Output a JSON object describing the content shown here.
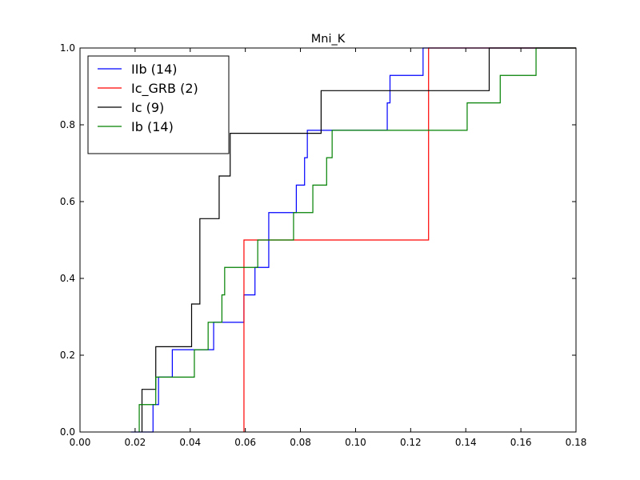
{
  "chart_data": {
    "type": "line",
    "title": "Mni_K",
    "xlabel": "",
    "ylabel": "",
    "xlim": [
      0.0,
      0.18
    ],
    "ylim": [
      0.0,
      1.0
    ],
    "xticks": [
      "0.00",
      "0.02",
      "0.04",
      "0.06",
      "0.08",
      "0.10",
      "0.12",
      "0.14",
      "0.16",
      "0.18"
    ],
    "yticks": [
      "0.0",
      "0.2",
      "0.4",
      "0.6",
      "0.8",
      "1.0"
    ],
    "grid": false,
    "legend_position": "top-left",
    "series": [
      {
        "name": "IIb (14)",
        "color": "#0000ff",
        "x": [
          0.0185,
          0.0265,
          0.0285,
          0.0335,
          0.0485,
          0.0595,
          0.0635,
          0.0685,
          0.0785,
          0.0815,
          0.0825,
          0.0835,
          0.1115,
          0.1125,
          0.1245
        ],
        "y": [
          0.0,
          0.0714,
          0.1429,
          0.2143,
          0.2857,
          0.3571,
          0.4286,
          0.5714,
          0.6429,
          0.7143,
          0.7857,
          0.7857,
          0.8571,
          0.9286,
          1.0
        ]
      },
      {
        "name": "Ic_GRB (2)",
        "color": "#ff0000",
        "x": [
          0.0595,
          0.1265
        ],
        "y": [
          0.5,
          1.0
        ]
      },
      {
        "name": "Ic (9)",
        "color": "#000000",
        "x": [
          0.0225,
          0.0275,
          0.0405,
          0.0435,
          0.0505,
          0.0545,
          0.0875,
          0.1485
        ],
        "y": [
          0.1111,
          0.2222,
          0.3333,
          0.5556,
          0.6667,
          0.7778,
          0.8889,
          1.0
        ]
      },
      {
        "name": "Ib (14)",
        "color": "#008000",
        "x": [
          0.0215,
          0.0275,
          0.0415,
          0.0465,
          0.0515,
          0.0525,
          0.0645,
          0.0775,
          0.0845,
          0.0895,
          0.0915,
          0.1405,
          0.1525,
          0.1655
        ],
        "y": [
          0.0714,
          0.1429,
          0.2143,
          0.2857,
          0.3571,
          0.4286,
          0.5,
          0.5714,
          0.6429,
          0.7143,
          0.7857,
          0.8571,
          0.9286,
          1.0
        ]
      }
    ]
  }
}
